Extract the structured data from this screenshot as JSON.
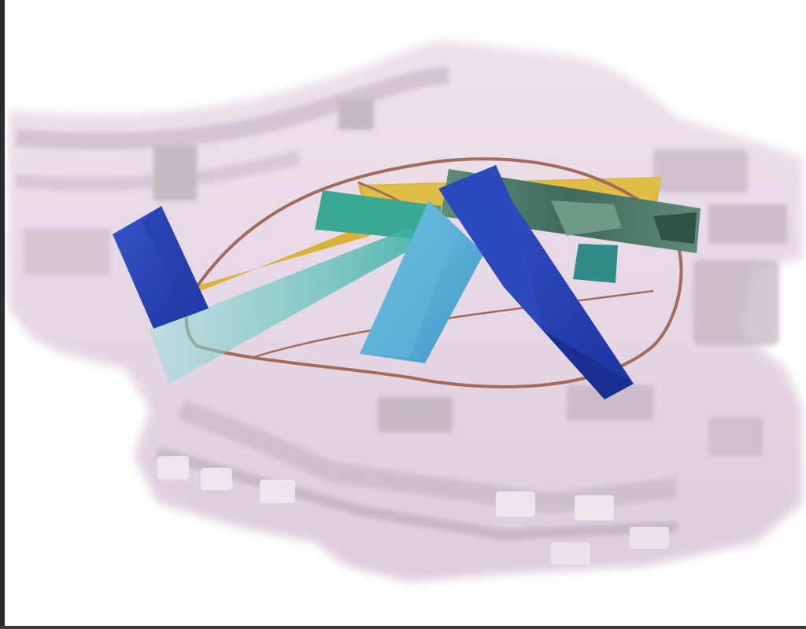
{
  "image": {
    "subject": "translucent-pink-frame-with-colored-strips-and-wire-loop",
    "colors": {
      "background": "#ffffff",
      "pink_frame": "#e9d8e6",
      "pink_frame_shadow": "#d8c6d4",
      "pink_frame_dark": "#b9a8b6",
      "frame_window": "#c8bcc6",
      "wire": "#a46a5a",
      "royal_blue": "#2a46b8",
      "royal_blue_dark": "#1e36a0",
      "sky_blue": "#5fb6d9",
      "teal": "#3aa893",
      "turquoise": "#4fc7c0",
      "mustard": "#d9b238",
      "camo_green": "#4a7868",
      "border": "#2a2a2a"
    }
  }
}
